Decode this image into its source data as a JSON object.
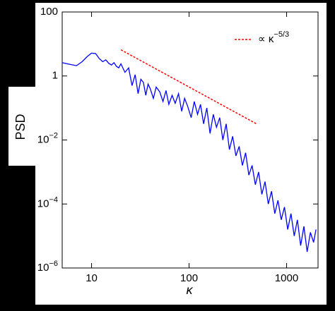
{
  "chart_data": {
    "type": "line",
    "xlabel": "κ",
    "ylabel": "PSD",
    "log_x": true,
    "log_y": true,
    "xlim": [
      5,
      2100
    ],
    "ylim": [
      1e-06,
      100
    ],
    "xticks": [
      10,
      100,
      1000
    ],
    "yticks": [
      100,
      1,
      {
        "value": 0.01,
        "label": "10",
        "exponent": "−2"
      },
      {
        "value": 0.0001,
        "label": "10",
        "exponent": "−4"
      },
      {
        "value": 1e-06,
        "label": "10",
        "exponent": "−6"
      }
    ],
    "legend": "upper right",
    "series": [
      {
        "color": "#0000ff",
        "x": [
          5,
          6,
          7,
          8,
          9,
          10,
          11,
          12,
          13,
          14,
          15,
          16,
          17,
          18,
          19,
          20,
          22,
          24,
          26,
          28,
          30,
          32,
          34,
          36,
          38,
          40,
          43,
          46,
          50,
          54,
          58,
          62,
          67,
          72,
          78,
          84,
          90,
          97,
          105,
          113,
          122,
          131,
          141,
          152,
          164,
          177,
          191,
          206,
          222,
          240,
          259,
          280,
          302,
          326,
          352,
          380,
          410,
          443,
          478,
          516,
          557,
          601,
          649,
          700,
          756,
          816,
          881,
          951,
          1027,
          1108,
          1196,
          1291,
          1394,
          1505,
          1624,
          1753,
          1892,
          2000
        ],
        "values": [
          2.6,
          2.3,
          2.1,
          2.8,
          4.0,
          5.2,
          5.0,
          3.5,
          2.8,
          3.2,
          2.5,
          2.2,
          2.6,
          2.0,
          1.8,
          2.4,
          1.3,
          1.8,
          0.5,
          1.1,
          0.28,
          0.79,
          0.63,
          0.25,
          0.56,
          0.4,
          0.2,
          0.45,
          0.32,
          0.16,
          0.35,
          0.13,
          0.25,
          0.14,
          0.28,
          0.079,
          0.2,
          0.11,
          0.05,
          0.16,
          0.063,
          0.13,
          0.032,
          0.1,
          0.016,
          0.063,
          0.025,
          0.05,
          0.01,
          0.032,
          0.005,
          0.013,
          0.0032,
          0.0063,
          0.0016,
          0.004,
          0.0008,
          0.0016,
          0.0004,
          0.001,
          0.0002,
          0.0005,
          0.0001,
          0.00025,
          5e-05,
          0.00013,
          3.2e-05,
          8e-05,
          1.6e-05,
          5e-05,
          1e-05,
          3.2e-05,
          5e-06,
          2e-05,
          3.2e-06,
          1.3e-05,
          6.3e-06,
          1.6e-05
        ]
      },
      {
        "name": "∝ κ",
        "name_superscript": "−5/3",
        "color": "#ff0000",
        "dashed": true,
        "x": [
          20,
          500
        ],
        "values": [
          6.6,
          0.031
        ]
      }
    ]
  }
}
